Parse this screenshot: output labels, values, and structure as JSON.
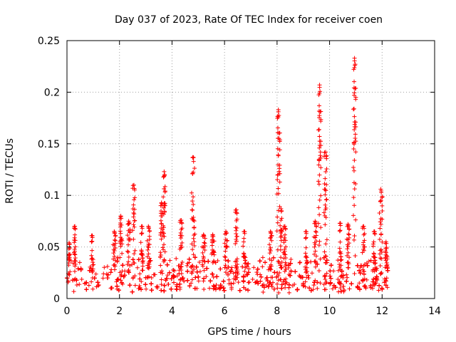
{
  "chart_data": {
    "type": "scatter",
    "title": "Day 037 of 2023, Rate Of TEC Index for receiver coen",
    "xlabel": "GPS time / hours",
    "ylabel": "ROTI / TECUs",
    "xlim": [
      0,
      14
    ],
    "ylim": [
      0,
      0.25
    ],
    "x_ticks": [
      0,
      2,
      4,
      6,
      8,
      10,
      12,
      14
    ],
    "y_ticks": [
      0,
      0.05,
      0.1,
      0.15,
      0.2,
      0.25
    ],
    "x_tick_labels": [
      "0",
      "2",
      "4",
      "6",
      "8",
      "10",
      "12",
      "14"
    ],
    "y_tick_labels": [
      "0",
      "0.05",
      "0.1",
      "0.15",
      "0.2",
      "0.25"
    ],
    "grid": true,
    "marker": "+",
    "series_color": "#ff0000",
    "data_x_range": [
      0,
      12.25
    ],
    "baseline_band": [
      0.005,
      0.035
    ],
    "series": [
      {
        "name": "ROTI",
        "spikes": [
          {
            "x": 0.08,
            "peak": 0.054,
            "width": 0.04
          },
          {
            "x": 0.3,
            "peak": 0.07,
            "width": 0.03
          },
          {
            "x": 0.95,
            "peak": 0.061,
            "width": 0.06
          },
          {
            "x": 1.8,
            "peak": 0.065,
            "width": 0.05
          },
          {
            "x": 2.05,
            "peak": 0.08,
            "width": 0.05
          },
          {
            "x": 2.35,
            "peak": 0.075,
            "width": 0.05
          },
          {
            "x": 2.55,
            "peak": 0.11,
            "width": 0.05
          },
          {
            "x": 2.85,
            "peak": 0.07,
            "width": 0.05
          },
          {
            "x": 3.1,
            "peak": 0.07,
            "width": 0.05
          },
          {
            "x": 3.6,
            "peak": 0.093,
            "width": 0.06
          },
          {
            "x": 3.7,
            "peak": 0.123,
            "width": 0.04
          },
          {
            "x": 4.35,
            "peak": 0.076,
            "width": 0.05
          },
          {
            "x": 4.8,
            "peak": 0.137,
            "width": 0.07
          },
          {
            "x": 5.2,
            "peak": 0.062,
            "width": 0.06
          },
          {
            "x": 5.55,
            "peak": 0.062,
            "width": 0.06
          },
          {
            "x": 6.05,
            "peak": 0.065,
            "width": 0.05
          },
          {
            "x": 6.45,
            "peak": 0.086,
            "width": 0.04
          },
          {
            "x": 6.75,
            "peak": 0.065,
            "width": 0.06
          },
          {
            "x": 7.75,
            "peak": 0.065,
            "width": 0.05
          },
          {
            "x": 8.05,
            "peak": 0.183,
            "width": 0.06
          },
          {
            "x": 8.15,
            "peak": 0.087,
            "width": 0.04
          },
          {
            "x": 8.3,
            "peak": 0.07,
            "width": 0.05
          },
          {
            "x": 9.1,
            "peak": 0.065,
            "width": 0.05
          },
          {
            "x": 9.45,
            "peak": 0.075,
            "width": 0.05
          },
          {
            "x": 9.62,
            "peak": 0.207,
            "width": 0.05
          },
          {
            "x": 9.85,
            "peak": 0.142,
            "width": 0.06
          },
          {
            "x": 10.4,
            "peak": 0.073,
            "width": 0.05
          },
          {
            "x": 10.7,
            "peak": 0.072,
            "width": 0.05
          },
          {
            "x": 10.95,
            "peak": 0.233,
            "width": 0.05
          },
          {
            "x": 11.3,
            "peak": 0.07,
            "width": 0.05
          },
          {
            "x": 11.7,
            "peak": 0.065,
            "width": 0.05
          },
          {
            "x": 11.95,
            "peak": 0.106,
            "width": 0.06
          },
          {
            "x": 12.15,
            "peak": 0.055,
            "width": 0.05
          }
        ]
      }
    ]
  }
}
